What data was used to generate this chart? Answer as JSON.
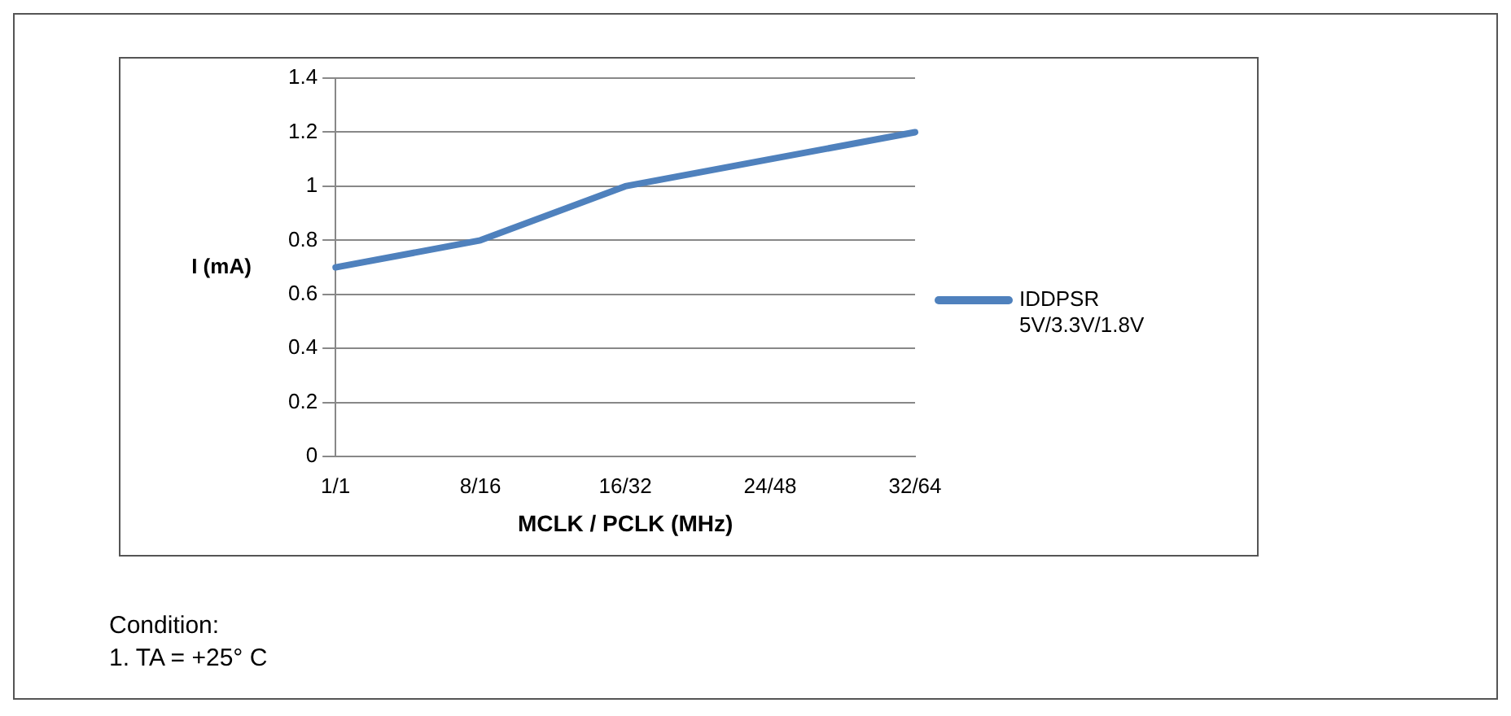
{
  "chart_data": {
    "type": "line",
    "xlabel": "MCLK / PCLK (MHz)",
    "ylabel": "I (mA)",
    "categories": [
      "1/1",
      "8/16",
      "16/32",
      "24/48",
      "32/64"
    ],
    "series": [
      {
        "name": "IDDPSR 5V/3.3V/1.8V",
        "color": "#4f81bd",
        "values": [
          0.7,
          0.8,
          1.0,
          1.1,
          1.2
        ]
      }
    ],
    "ylim": [
      0,
      1.4
    ],
    "yticks": [
      0,
      0.2,
      0.4,
      0.6,
      0.8,
      1,
      1.2,
      1.4
    ],
    "grid": "y",
    "legend": "right",
    "marker": "none",
    "line_style": "solid",
    "annotations": [
      "Condition:",
      "1. TA = +25° C"
    ]
  }
}
